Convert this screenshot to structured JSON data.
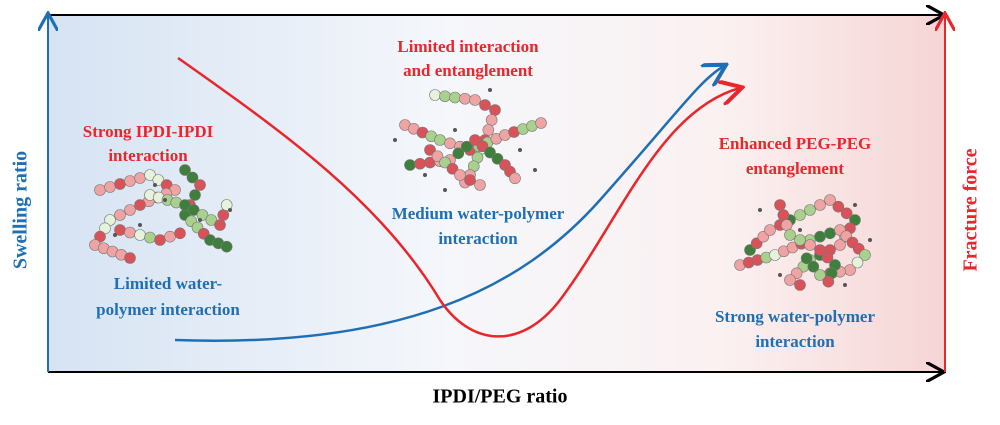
{
  "axes": {
    "x_label": "IPDI/PEG ratio",
    "y_left_label": "Swelling ratio",
    "y_right_label": "Fracture force"
  },
  "annotations": [
    {
      "lines": [
        "Strong IPDI-IPDI",
        "interaction"
      ]
    },
    {
      "lines": [
        "Limited water-",
        "polymer interaction"
      ]
    },
    {
      "lines": [
        "Limited interaction",
        "and entanglement"
      ]
    },
    {
      "lines": [
        "Medium water-polymer",
        "interaction"
      ]
    },
    {
      "lines": [
        "Enhanced PEG-PEG",
        "entanglement"
      ]
    },
    {
      "lines": [
        "Strong water-polymer",
        "interaction"
      ]
    }
  ]
}
